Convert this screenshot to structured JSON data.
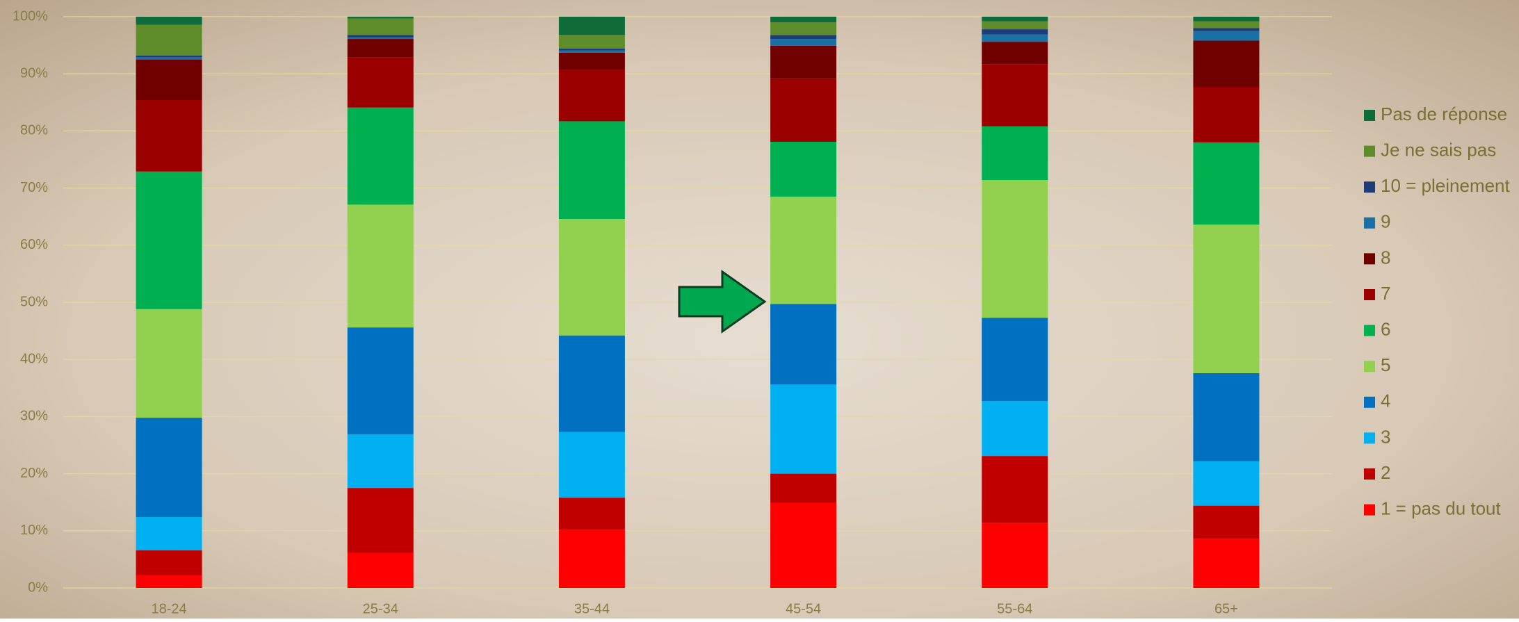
{
  "chart_data": {
    "type": "stacked-bar",
    "categories": [
      "18-24",
      "25-34",
      "35-44",
      "45-54",
      "55-64",
      "65+"
    ],
    "ylim": [
      0,
      100
    ],
    "yticks": [
      {
        "value": 0,
        "label": "0%"
      },
      {
        "value": 10,
        "label": "10%"
      },
      {
        "value": 20,
        "label": "20%"
      },
      {
        "value": 30,
        "label": "30%"
      },
      {
        "value": 40,
        "label": "40%"
      },
      {
        "value": 50,
        "label": "50%"
      },
      {
        "value": 60,
        "label": "60%"
      },
      {
        "value": 70,
        "label": "70%"
      },
      {
        "value": 80,
        "label": "80%"
      },
      {
        "value": 90,
        "label": "90%"
      },
      {
        "value": 100,
        "label": "100%"
      }
    ],
    "grid": true,
    "legend": "right",
    "series": [
      {
        "name": "1 = pas du tout",
        "color": "#ff0000",
        "values": [
          2.2,
          6.1,
          10.2,
          14.9,
          11.4,
          8.6
        ]
      },
      {
        "name": "2",
        "color": "#c00000",
        "values": [
          4.4,
          11.4,
          5.6,
          5.1,
          11.7,
          5.8
        ]
      },
      {
        "name": "3",
        "color": "#00b0f0",
        "values": [
          5.8,
          9.4,
          11.5,
          15.6,
          9.6,
          7.8
        ]
      },
      {
        "name": "4",
        "color": "#0070c0",
        "values": [
          17.4,
          18.7,
          16.9,
          14.1,
          14.6,
          15.4
        ]
      },
      {
        "name": "5",
        "color": "#92d050",
        "values": [
          19.0,
          21.5,
          20.4,
          18.8,
          24.1,
          26.0
        ]
      },
      {
        "name": "6",
        "color": "#00b050",
        "values": [
          24.1,
          17.0,
          17.1,
          9.6,
          9.4,
          14.4
        ]
      },
      {
        "name": "7",
        "color": "#9a0000",
        "values": [
          12.5,
          8.8,
          9.0,
          11.1,
          10.9,
          9.6
        ]
      },
      {
        "name": "8",
        "color": "#700000",
        "values": [
          7.1,
          3.2,
          3.0,
          5.7,
          3.9,
          8.2
        ]
      },
      {
        "name": "9",
        "color": "#1a6fa3",
        "values": [
          0.4,
          0.3,
          0.4,
          1.2,
          1.3,
          1.7
        ]
      },
      {
        "name": "10 = pleinement",
        "color": "#1f3c78",
        "values": [
          0.3,
          0.4,
          0.3,
          0.7,
          0.9,
          0.5
        ]
      },
      {
        "name": "Je ne sais pas",
        "color": "#5e8c2b",
        "values": [
          5.4,
          2.9,
          2.4,
          2.2,
          1.4,
          1.2
        ]
      },
      {
        "name": "Pas de réponse",
        "color": "#0f6b3a",
        "values": [
          1.4,
          0.3,
          3.2,
          1.0,
          0.8,
          0.8
        ]
      }
    ]
  }
}
